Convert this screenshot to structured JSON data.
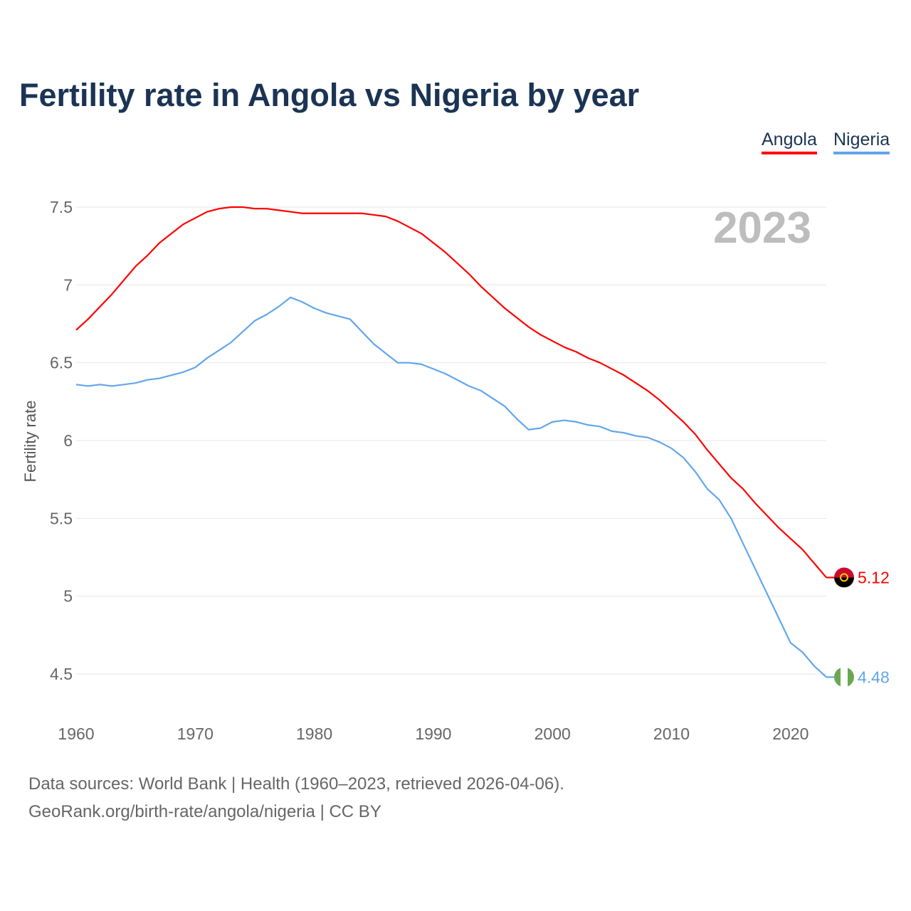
{
  "title": "Fertility rate in Angola vs Nigeria by year",
  "footer": {
    "line1": "Data sources: World Bank | Health (1960–2023, retrieved 2026-04-06).",
    "line2": "GeoRank.org/birth-rate/angola/nigeria | CC BY"
  },
  "chart_data": {
    "type": "line",
    "title": "Fertility rate in Angola vs Nigeria by year",
    "xlabel": "",
    "ylabel": "Fertility rate",
    "year_label": "2023",
    "xlim": [
      1960,
      2023
    ],
    "ylim": [
      4.5,
      7.5
    ],
    "xticks": [
      "1960",
      "1970",
      "1980",
      "1990",
      "2000",
      "2010",
      "2020"
    ],
    "yticks": [
      "4.5",
      "5",
      "5.5",
      "6",
      "6.5",
      "7",
      "7.5"
    ],
    "legend_position": "top-right",
    "x": [
      1960,
      1961,
      1962,
      1963,
      1964,
      1965,
      1966,
      1967,
      1968,
      1969,
      1970,
      1971,
      1972,
      1973,
      1974,
      1975,
      1976,
      1977,
      1978,
      1979,
      1980,
      1981,
      1982,
      1983,
      1984,
      1985,
      1986,
      1987,
      1988,
      1989,
      1990,
      1991,
      1992,
      1993,
      1994,
      1995,
      1996,
      1997,
      1998,
      1999,
      2000,
      2001,
      2002,
      2003,
      2004,
      2005,
      2006,
      2007,
      2008,
      2009,
      2010,
      2011,
      2012,
      2013,
      2014,
      2015,
      2016,
      2017,
      2018,
      2019,
      2020,
      2021,
      2022,
      2023
    ],
    "series": [
      {
        "name": "Angola",
        "color": "#ff0000",
        "end_label": "5.12",
        "values": [
          6.71,
          6.78,
          6.86,
          6.94,
          7.03,
          7.12,
          7.19,
          7.27,
          7.33,
          7.39,
          7.43,
          7.47,
          7.49,
          7.5,
          7.5,
          7.49,
          7.49,
          7.48,
          7.47,
          7.46,
          7.46,
          7.46,
          7.46,
          7.46,
          7.46,
          7.45,
          7.44,
          7.41,
          7.37,
          7.33,
          7.27,
          7.21,
          7.14,
          7.07,
          6.99,
          6.92,
          6.85,
          6.79,
          6.73,
          6.68,
          6.64,
          6.6,
          6.57,
          6.53,
          6.5,
          6.46,
          6.42,
          6.37,
          6.32,
          6.26,
          6.19,
          6.12,
          6.04,
          5.94,
          5.85,
          5.76,
          5.69,
          5.6,
          5.52,
          5.44,
          5.37,
          5.3,
          5.21,
          5.12
        ]
      },
      {
        "name": "Nigeria",
        "color": "#63a6ea",
        "end_label": "4.48",
        "values": [
          6.36,
          6.35,
          6.36,
          6.35,
          6.36,
          6.37,
          6.39,
          6.4,
          6.42,
          6.44,
          6.47,
          6.53,
          6.58,
          6.63,
          6.7,
          6.77,
          6.81,
          6.86,
          6.92,
          6.89,
          6.85,
          6.82,
          6.8,
          6.78,
          6.7,
          6.62,
          6.56,
          6.5,
          6.5,
          6.49,
          6.46,
          6.43,
          6.39,
          6.35,
          6.32,
          6.27,
          6.22,
          6.14,
          6.07,
          6.08,
          6.12,
          6.13,
          6.12,
          6.1,
          6.09,
          6.06,
          6.05,
          6.03,
          6.02,
          5.99,
          5.95,
          5.89,
          5.8,
          5.69,
          5.62,
          5.5,
          5.34,
          5.18,
          5.02,
          4.86,
          4.7,
          4.64,
          4.55,
          4.48
        ]
      }
    ]
  }
}
